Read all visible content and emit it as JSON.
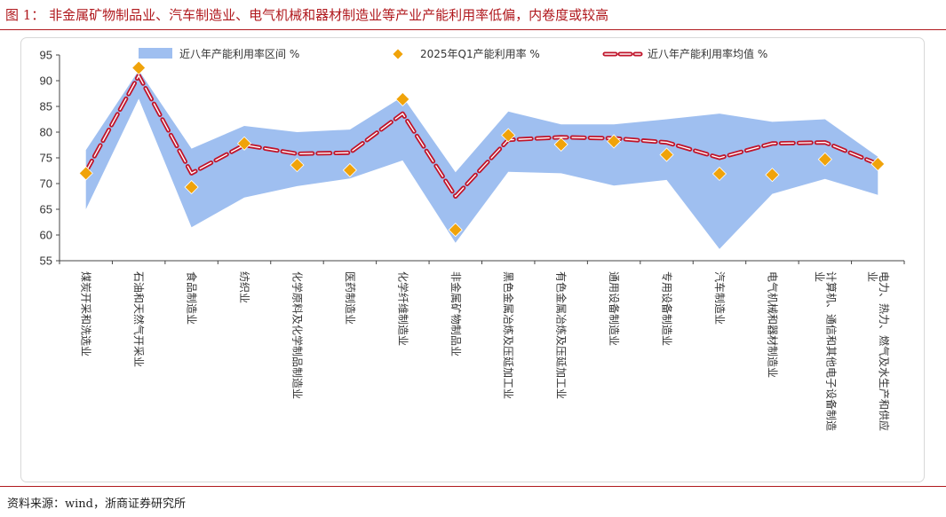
{
  "figure": {
    "title": "图 1：  非金属矿物制品业、汽车制造业、电气机械和器材制造业等产业产能利用率低偏，内卷度或较高",
    "source": "资料来源：wind，浙商证券研究所"
  },
  "chart_data": {
    "type": "line",
    "title": "",
    "xlabel": "",
    "ylabel": "",
    "ylim": [
      55,
      95
    ],
    "yticks": [
      55,
      60,
      65,
      70,
      75,
      80,
      85,
      90,
      95
    ],
    "categories": [
      "煤炭开采和洗选业",
      "石油和天然气开采业",
      "食品制造业",
      "纺织业",
      "化学原料及化学制品制造业",
      "医药制造业",
      "化学纤维制造业",
      "非金属矿物制品业",
      "黑色金属冶炼及压延加工业",
      "有色金属冶炼及压延加工业",
      "通用设备制造业",
      "专用设备制造业",
      "汽车制造业",
      "电气机械和器材制造业",
      "计算机、通信和其他电子设备制造业",
      "电力、热力、燃气及水生产和供应业"
    ],
    "series": [
      {
        "name": "近八年产能利用率区间 %",
        "kind": "range",
        "color": "#9fbff0",
        "low": [
          65.0,
          86.5,
          61.5,
          67.3,
          69.5,
          71.0,
          74.5,
          58.5,
          72.3,
          72.0,
          69.6,
          70.7,
          57.3,
          68.0,
          70.9,
          67.8
        ],
        "high": [
          76.5,
          92.0,
          76.8,
          81.2,
          80.0,
          80.5,
          86.9,
          72.2,
          84.0,
          81.5,
          81.5,
          82.5,
          83.6,
          82.0,
          82.5,
          75.2
        ]
      },
      {
        "name": "2025年Q1产能利用率 %",
        "kind": "marker",
        "color": "#f0a30a",
        "values": [
          72.0,
          92.5,
          69.3,
          77.8,
          73.6,
          72.6,
          86.4,
          61.0,
          79.4,
          77.6,
          78.2,
          75.6,
          71.9,
          71.7,
          74.7,
          73.8
        ]
      },
      {
        "name": "近八年产能利用率均值 %",
        "kind": "line",
        "color": "#c0152b",
        "values": [
          72.3,
          91.0,
          72.0,
          77.5,
          75.8,
          76.0,
          83.6,
          67.5,
          78.5,
          79.0,
          78.8,
          78.0,
          75.0,
          77.8,
          78.0,
          73.8
        ]
      }
    ],
    "legend_position": "top"
  }
}
